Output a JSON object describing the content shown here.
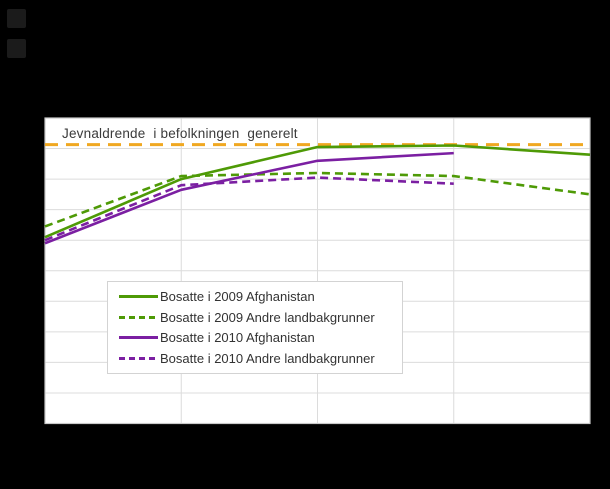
{
  "colors": {
    "background": "#000000",
    "plot_background": "#ffffff",
    "gridline": "#dcdcdc",
    "plot_border": "#c9c9c9",
    "text": "#333333",
    "green": "#4e9a06",
    "purple": "#7b1fa2",
    "amber": "#f0a821"
  },
  "chart_data": {
    "type": "line",
    "title": "",
    "xlabel": "",
    "ylabel": "",
    "x": [
      0,
      1,
      2,
      3,
      4
    ],
    "x_tick_labels_visible": false,
    "y_tick_labels_visible": false,
    "ylim": [
      0,
      100
    ],
    "y_gridline_step": 10,
    "grid": true,
    "legend_position": "inside-center-left",
    "reference_line": {
      "label": "Jevnaldrende  i befolkningen  generelt",
      "value": 91.3,
      "color": "#f0a821",
      "style": "dashed"
    },
    "series": [
      {
        "name": "Bosatte i 2009 Afghanistan",
        "color": "#4e9a06",
        "style": "solid",
        "x": [
          0,
          1,
          2,
          3,
          4
        ],
        "values": [
          61,
          80,
          90.5,
          91,
          88
        ]
      },
      {
        "name": "Bosatte i 2009 Andre landbakgrunner",
        "color": "#4e9a06",
        "style": "dashed",
        "x": [
          0,
          1,
          2,
          3,
          4
        ],
        "values": [
          64.5,
          81,
          82,
          81,
          75
        ]
      },
      {
        "name": "Bosatte i 2010 Afghanistan",
        "color": "#7b1fa2",
        "style": "solid",
        "x": [
          0,
          1,
          2,
          3
        ],
        "values": [
          59,
          76.5,
          86,
          88.5
        ]
      },
      {
        "name": "Bosatte i 2010 Andre landbakgrunner",
        "color": "#7b1fa2",
        "style": "dashed",
        "x": [
          0,
          1,
          2,
          3
        ],
        "values": [
          60,
          78,
          80.5,
          78.5
        ]
      }
    ]
  }
}
